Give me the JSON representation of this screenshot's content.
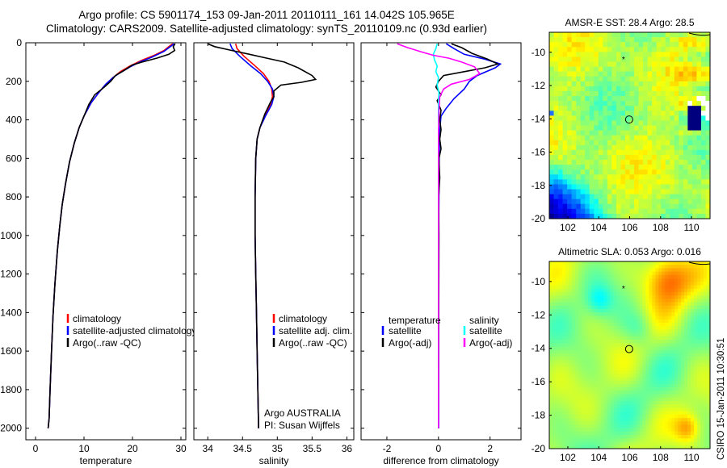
{
  "header": {
    "line1": "Argo profile: CS 5901174_153 09-Jan-2011 20110111_161 14.042S 105.965E",
    "line2": "Climatology: CARS2009. Satellite-adjusted climatology: synTS_20110109.nc (0.93d earlier)"
  },
  "colors": {
    "climatology": "#ff0000",
    "satellite": "#0000ff",
    "argo": "#000000",
    "salinity_satellite": "#00ffff",
    "salinity_argo": "#ff00ff"
  },
  "chart_data": [
    {
      "type": "line",
      "xlabel": "temperature",
      "xlim": [
        -2,
        31
      ],
      "xticks": [
        0,
        10,
        20,
        30
      ],
      "ylim": [
        2060,
        0
      ],
      "yticks": [
        0,
        200,
        400,
        600,
        800,
        1000,
        1200,
        1400,
        1600,
        1800,
        2000
      ],
      "y_inverted": true,
      "legend": [
        "climatology",
        "satellite-adjusted climatology",
        "Argo(..raw -QC)"
      ],
      "series": [
        {
          "name": "climatology",
          "color": "#ff0000",
          "points": [
            [
              28.3,
              5
            ],
            [
              27.5,
              20
            ],
            [
              26.5,
              40
            ],
            [
              24.5,
              65
            ],
            [
              22,
              90
            ],
            [
              19.5,
              120
            ],
            [
              17.5,
              150
            ],
            [
              16,
              180
            ],
            [
              14.5,
              215
            ],
            [
              13,
              260
            ],
            [
              11.5,
              310
            ],
            [
              10,
              380
            ],
            [
              9,
              440
            ],
            [
              8,
              520
            ],
            [
              7,
              620
            ],
            [
              6.2,
              730
            ],
            [
              5.5,
              840
            ],
            [
              5,
              950
            ],
            [
              4.5,
              1080
            ],
            [
              4,
              1250
            ],
            [
              3.6,
              1420
            ],
            [
              3.3,
              1600
            ],
            [
              3,
              1800
            ],
            [
              2.8,
              1950
            ],
            [
              2.6,
              2000
            ]
          ]
        },
        {
          "name": "satellite-adjusted climatology",
          "color": "#0000ff",
          "points": [
            [
              28.6,
              5
            ],
            [
              27.8,
              20
            ],
            [
              26.5,
              45
            ],
            [
              24,
              75
            ],
            [
              21.5,
              100
            ],
            [
              19.5,
              125
            ],
            [
              17.5,
              155
            ],
            [
              16,
              180
            ],
            [
              14.5,
              215
            ],
            [
              13,
              260
            ],
            [
              11.5,
              310
            ],
            [
              10,
              380
            ],
            [
              9,
              440
            ],
            [
              8,
              520
            ],
            [
              7,
              620
            ],
            [
              6.2,
              730
            ],
            [
              5.5,
              840
            ],
            [
              5,
              950
            ],
            [
              4.5,
              1080
            ],
            [
              4,
              1250
            ],
            [
              3.6,
              1420
            ],
            [
              3.3,
              1600
            ],
            [
              3,
              1800
            ],
            [
              2.8,
              1950
            ],
            [
              2.6,
              2000
            ]
          ]
        },
        {
          "name": "Argo(..raw -QC)",
          "color": "#000000",
          "points": [
            [
              28.8,
              5
            ],
            [
              28.4,
              20
            ],
            [
              28.7,
              40
            ],
            [
              27.5,
              60
            ],
            [
              25,
              80
            ],
            [
              22,
              100
            ],
            [
              20,
              115
            ],
            [
              18.5,
              140
            ],
            [
              16.5,
              170
            ],
            [
              15.5,
              200
            ],
            [
              14.2,
              230
            ],
            [
              12.2,
              270
            ],
            [
              11,
              320
            ],
            [
              10,
              380
            ],
            [
              9,
              440
            ],
            [
              8,
              520
            ],
            [
              7,
              620
            ],
            [
              6.2,
              730
            ],
            [
              5.5,
              840
            ],
            [
              5,
              950
            ],
            [
              4.5,
              1080
            ],
            [
              4,
              1250
            ],
            [
              3.6,
              1420
            ],
            [
              3.3,
              1600
            ],
            [
              3,
              1800
            ],
            [
              2.8,
              1950
            ],
            [
              2.6,
              2000
            ]
          ]
        }
      ]
    },
    {
      "type": "line",
      "xlabel": "salinity",
      "xlim": [
        33.8,
        36.1
      ],
      "xticks": [
        34,
        34.5,
        35,
        35.5,
        36
      ],
      "ylim": [
        2060,
        0
      ],
      "y_inverted": true,
      "legend": [
        "climatology",
        "satellite adj. clim.",
        "Argo(..raw -QC)"
      ],
      "annotation": [
        "Argo AUSTRALIA",
        "PI: Susan Wijffels"
      ],
      "series": [
        {
          "name": "climatology",
          "color": "#ff0000",
          "points": [
            [
              34.4,
              5
            ],
            [
              34.42,
              30
            ],
            [
              34.52,
              70
            ],
            [
              34.68,
              120
            ],
            [
              34.8,
              160
            ],
            [
              34.88,
              200
            ],
            [
              34.92,
              240
            ],
            [
              34.93,
              280
            ],
            [
              34.9,
              320
            ],
            [
              34.82,
              380
            ],
            [
              34.75,
              440
            ],
            [
              34.71,
              500
            ],
            [
              34.69,
              600
            ],
            [
              34.68,
              800
            ],
            [
              34.68,
              1000
            ],
            [
              34.69,
              1200
            ],
            [
              34.7,
              1400
            ],
            [
              34.71,
              1600
            ],
            [
              34.72,
              1800
            ],
            [
              34.73,
              2000
            ]
          ]
        },
        {
          "name": "satellite adj. clim.",
          "color": "#0000ff",
          "points": [
            [
              34.32,
              5
            ],
            [
              34.35,
              30
            ],
            [
              34.46,
              70
            ],
            [
              34.62,
              120
            ],
            [
              34.76,
              160
            ],
            [
              34.86,
              200
            ],
            [
              34.93,
              240
            ],
            [
              34.95,
              280
            ],
            [
              34.92,
              320
            ],
            [
              34.83,
              380
            ],
            [
              34.75,
              440
            ],
            [
              34.71,
              500
            ],
            [
              34.69,
              600
            ],
            [
              34.68,
              800
            ],
            [
              34.68,
              1000
            ],
            [
              34.69,
              1200
            ],
            [
              34.7,
              1400
            ],
            [
              34.71,
              1600
            ],
            [
              34.72,
              1800
            ],
            [
              34.73,
              2000
            ]
          ]
        },
        {
          "name": "Argo(..raw -QC)",
          "color": "#000000",
          "points": [
            [
              34.0,
              5
            ],
            [
              34.1,
              20
            ],
            [
              34.35,
              40
            ],
            [
              34.6,
              60
            ],
            [
              34.85,
              80
            ],
            [
              35.1,
              100
            ],
            [
              35.3,
              130
            ],
            [
              35.5,
              170
            ],
            [
              35.55,
              190
            ],
            [
              35.35,
              205
            ],
            [
              35.05,
              220
            ],
            [
              34.95,
              250
            ],
            [
              34.95,
              280
            ],
            [
              34.9,
              310
            ],
            [
              34.82,
              370
            ],
            [
              34.75,
              440
            ],
            [
              34.71,
              500
            ],
            [
              34.69,
              600
            ],
            [
              34.68,
              800
            ],
            [
              34.68,
              1000
            ],
            [
              34.69,
              1200
            ],
            [
              34.7,
              1400
            ],
            [
              34.71,
              1600
            ],
            [
              34.72,
              1800
            ],
            [
              34.73,
              2000
            ]
          ]
        }
      ]
    },
    {
      "type": "line",
      "xlabel": "difference from climatology",
      "xlim": [
        -3.0,
        3.2
      ],
      "xticks": [
        -2,
        0,
        2
      ],
      "ylim": [
        2060,
        0
      ],
      "y_inverted": true,
      "legend_titles": [
        "temperature",
        "salinity"
      ],
      "legend_temperature": [
        "satellite",
        "Argo(-adj)"
      ],
      "legend_salinity": [
        "satellite",
        "Argo(-adj)"
      ],
      "series": [
        {
          "name": "temperature satellite",
          "color": "#0000ff",
          "points": [
            [
              0.3,
              5
            ],
            [
              0.6,
              30
            ],
            [
              1.0,
              60
            ],
            [
              1.8,
              85
            ],
            [
              2.4,
              110
            ],
            [
              2.2,
              130
            ],
            [
              1.5,
              170
            ],
            [
              1.2,
              200
            ],
            [
              1.0,
              240
            ],
            [
              0.6,
              290
            ],
            [
              0.3,
              340
            ],
            [
              0.1,
              380
            ],
            [
              0.05,
              450
            ],
            [
              0.03,
              600
            ],
            [
              0.02,
              800
            ],
            [
              0.01,
              1000
            ],
            [
              0.01,
              1500
            ],
            [
              0.01,
              2000
            ]
          ]
        },
        {
          "name": "temperature Argo(-adj)",
          "color": "#000000",
          "points": [
            [
              0.5,
              5
            ],
            [
              0.9,
              25
            ],
            [
              1.3,
              55
            ],
            [
              1.9,
              85
            ],
            [
              2.3,
              110
            ],
            [
              1.8,
              130
            ],
            [
              1.0,
              150
            ],
            [
              0.2,
              170
            ],
            [
              0.0,
              200
            ],
            [
              -0.1,
              230
            ],
            [
              0.1,
              270
            ],
            [
              -0.05,
              300
            ],
            [
              0.1,
              350
            ],
            [
              0.05,
              400
            ],
            [
              0.1,
              450
            ],
            [
              0.05,
              500
            ],
            [
              0.1,
              550
            ],
            [
              0.02,
              600
            ],
            [
              0.05,
              700
            ],
            [
              0.01,
              800
            ],
            [
              0.02,
              1000
            ],
            [
              0.01,
              1500
            ],
            [
              0.0,
              2000
            ]
          ]
        },
        {
          "name": "salinity satellite",
          "color": "#00ffff",
          "points": [
            [
              -0.05,
              5
            ],
            [
              -0.1,
              30
            ],
            [
              -0.2,
              60
            ],
            [
              -0.15,
              90
            ],
            [
              -0.05,
              120
            ],
            [
              -0.1,
              150
            ],
            [
              0.0,
              180
            ],
            [
              -0.05,
              220
            ],
            [
              0.02,
              260
            ],
            [
              0.0,
              300
            ],
            [
              0.0,
              400
            ],
            [
              0.0,
              600
            ],
            [
              0.0,
              1000
            ],
            [
              0.0,
              2000
            ]
          ]
        },
        {
          "name": "salinity Argo(-adj)",
          "color": "#ff00ff",
          "points": [
            [
              -1.6,
              5
            ],
            [
              -1.2,
              25
            ],
            [
              -0.6,
              50
            ],
            [
              -0.2,
              65
            ],
            [
              0.4,
              80
            ],
            [
              0.9,
              100
            ],
            [
              1.4,
              125
            ],
            [
              1.6,
              160
            ],
            [
              1.2,
              190
            ],
            [
              0.5,
              215
            ],
            [
              0.2,
              240
            ],
            [
              0.05,
              280
            ],
            [
              0.02,
              350
            ],
            [
              0.0,
              450
            ],
            [
              0.0,
              600
            ],
            [
              0.0,
              1000
            ],
            [
              0.0,
              2000
            ]
          ]
        }
      ]
    },
    {
      "type": "heatmap",
      "title": "AMSR-E SST: 28.4 Argo: 28.5",
      "xlim": [
        100.8,
        111.2
      ],
      "ylim": [
        -20,
        -8.8
      ],
      "xticks": [
        102,
        104,
        106,
        108,
        110
      ],
      "yticks": [
        -20,
        -18,
        -16,
        -14,
        -12,
        -10
      ],
      "argo_position": [
        105.965,
        -14.042
      ],
      "prev_position": [
        105.6,
        -10.4
      ]
    },
    {
      "type": "heatmap",
      "title": "Altimetric SLA: 0.053 Argo: 0.016",
      "xlim": [
        100.8,
        111.2
      ],
      "ylim": [
        -20,
        -8.8
      ],
      "xticks": [
        102,
        104,
        106,
        108,
        110
      ],
      "yticks": [
        -20,
        -18,
        -16,
        -14,
        -12,
        -10
      ],
      "argo_position": [
        105.965,
        -14.042
      ],
      "prev_position": [
        105.6,
        -10.4
      ]
    }
  ],
  "footer": {
    "credit": "CSIRO 15-Jan-2011 10:30:51"
  }
}
